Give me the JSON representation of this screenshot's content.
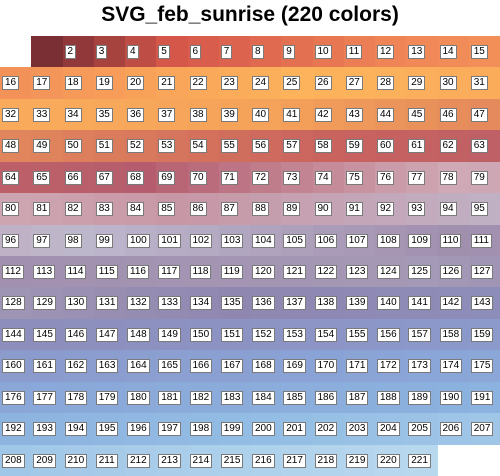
{
  "title": "SVG_feb_sunrise (220 colors)",
  "palette": {
    "name": "SVG_feb_sunrise",
    "color_count": 220,
    "columns": 16,
    "first_index": 2,
    "last_index": 221,
    "color_stops": [
      {
        "index": 1,
        "color": "#7a2f34"
      },
      {
        "index": 5,
        "color": "#d4574a"
      },
      {
        "index": 12,
        "color": "#ef8457"
      },
      {
        "index": 25,
        "color": "#fdb35b"
      },
      {
        "index": 40,
        "color": "#f5a25a"
      },
      {
        "index": 58,
        "color": "#c9635e"
      },
      {
        "index": 68,
        "color": "#b55d6e"
      },
      {
        "index": 78,
        "color": "#cfaab6"
      },
      {
        "index": 85,
        "color": "#c897a5"
      },
      {
        "index": 98,
        "color": "#bdb7cc"
      },
      {
        "index": 110,
        "color": "#a18fae"
      },
      {
        "index": 125,
        "color": "#a499b6"
      },
      {
        "index": 135,
        "color": "#8f87b0"
      },
      {
        "index": 150,
        "color": "#8c92c2"
      },
      {
        "index": 170,
        "color": "#8aa3d6"
      },
      {
        "index": 190,
        "color": "#8bb1de"
      },
      {
        "index": 200,
        "color": "#93bde4"
      },
      {
        "index": 221,
        "color": "#b8d8ee"
      }
    ]
  }
}
